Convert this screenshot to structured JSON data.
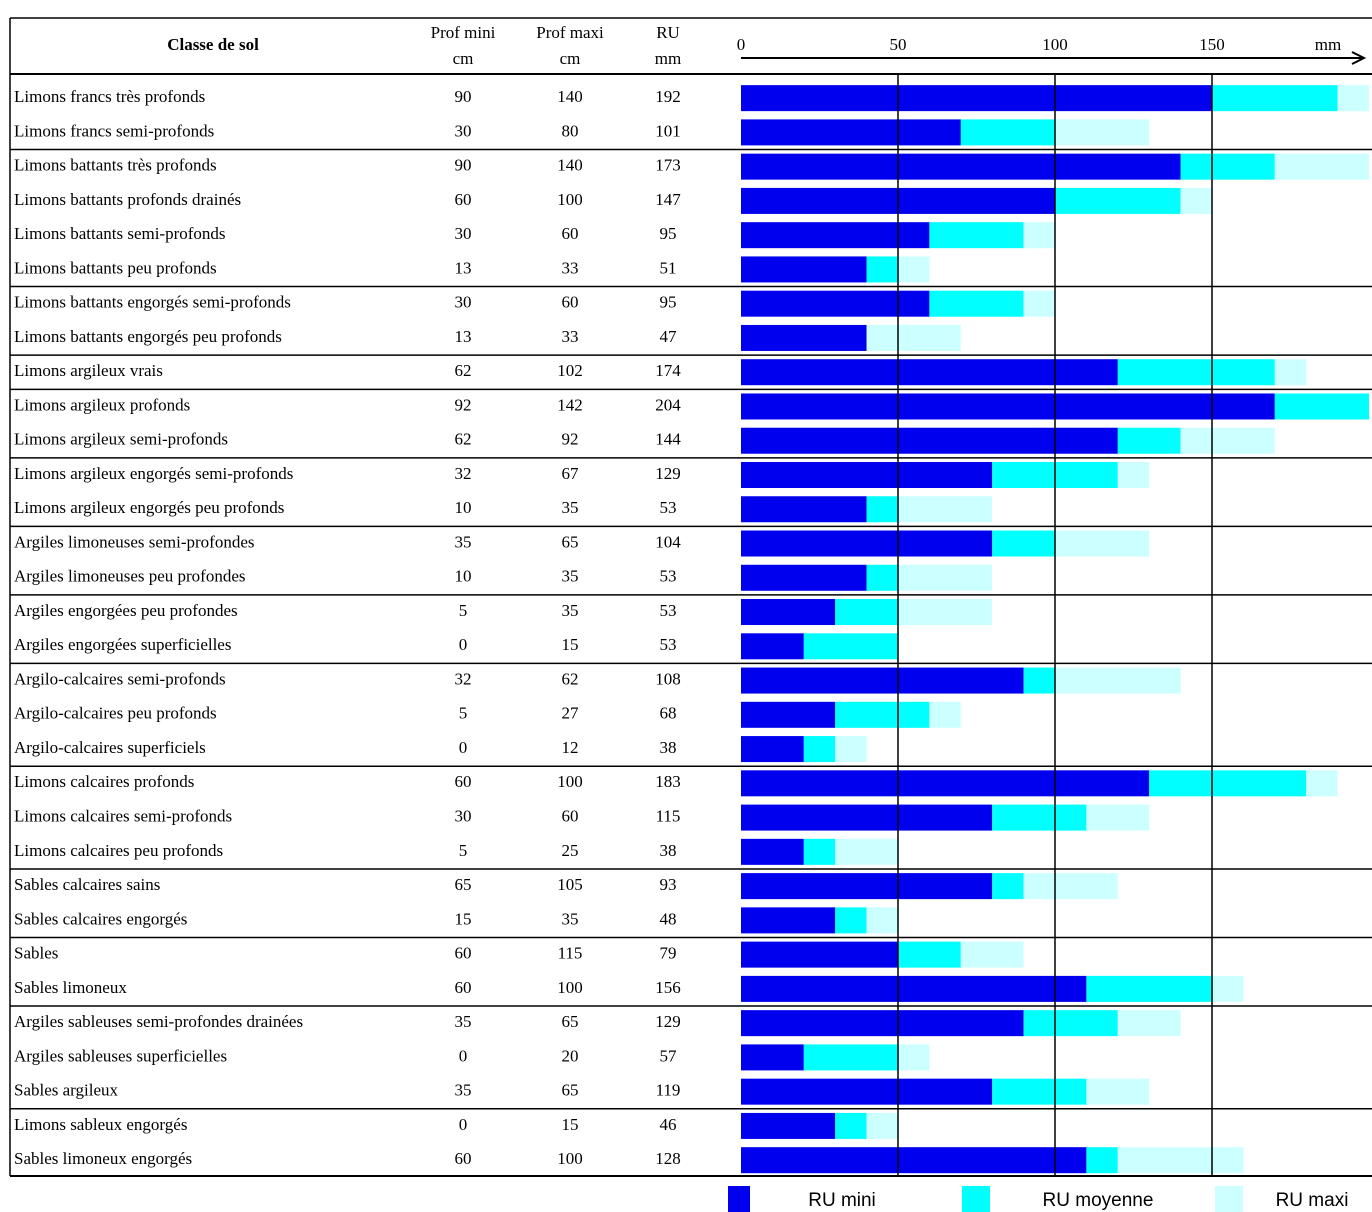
{
  "table": {
    "headers": [
      [
        "Classe de sol"
      ],
      [
        "Prof mini",
        "cm"
      ],
      [
        "Prof maxi",
        "cm"
      ],
      [
        "RU",
        "mm"
      ]
    ],
    "groups": [
      [
        [
          "Limons francs très profonds",
          90,
          140,
          192
        ],
        [
          "Limons francs semi-profonds",
          30,
          80,
          101
        ]
      ],
      [
        [
          "Limons battants très profonds",
          90,
          140,
          173
        ],
        [
          "Limons battants profonds drainés",
          60,
          100,
          147
        ],
        [
          "Limons battants semi-profonds",
          30,
          60,
          95
        ],
        [
          "Limons battants peu profonds",
          13,
          33,
          51
        ]
      ],
      [
        [
          "Limons battants engorgés semi-profonds",
          30,
          60,
          95
        ],
        [
          "Limons battants engorgés peu profonds",
          13,
          33,
          47
        ]
      ],
      [
        [
          "Limons argileux vrais",
          62,
          102,
          174
        ]
      ],
      [
        [
          "Limons argileux profonds",
          92,
          142,
          204
        ],
        [
          "Limons argileux semi-profonds",
          62,
          92,
          144
        ]
      ],
      [
        [
          "Limons argileux engorgés semi-profonds",
          32,
          67,
          129
        ],
        [
          "Limons argileux engorgés peu profonds",
          10,
          35,
          53
        ]
      ],
      [
        [
          "Argiles limoneuses semi-profondes",
          35,
          65,
          104
        ],
        [
          "Argiles limoneuses peu profondes",
          10,
          35,
          53
        ]
      ],
      [
        [
          "Argiles engorgées peu profondes",
          5,
          35,
          53
        ],
        [
          "Argiles engorgées superficielles",
          0,
          15,
          53
        ]
      ],
      [
        [
          "Argilo-calcaires semi-profonds",
          32,
          62,
          108
        ],
        [
          "Argilo-calcaires peu profonds",
          5,
          27,
          68
        ],
        [
          "Argilo-calcaires superficiels",
          0,
          12,
          38
        ]
      ],
      [
        [
          "Limons calcaires profonds",
          60,
          100,
          183
        ],
        [
          "Limons calcaires semi-profonds",
          30,
          60,
          115
        ],
        [
          "Limons calcaires peu profonds",
          5,
          25,
          38
        ]
      ],
      [
        [
          "Sables calcaires sains",
          65,
          105,
          93
        ],
        [
          "Sables calcaires engorgés",
          15,
          35,
          48
        ]
      ],
      [
        [
          "Sables",
          60,
          115,
          79
        ],
        [
          "Sables limoneux",
          60,
          100,
          156
        ]
      ],
      [
        [
          "Argiles sableuses semi-profondes drainées",
          35,
          65,
          129
        ],
        [
          "Argiles sableuses superficielles",
          0,
          20,
          57
        ],
        [
          "Sables argileux",
          35,
          65,
          119
        ]
      ],
      [
        [
          "Limons sableux engorgés",
          0,
          15,
          46
        ],
        [
          "Sables limoneux engorgés",
          60,
          100,
          128
        ]
      ]
    ]
  },
  "chart_data": {
    "type": "bar",
    "stacked": true,
    "xlabel": "mm",
    "xlim": [
      0,
      200
    ],
    "xticks": [
      0,
      50,
      100,
      150
    ],
    "grid": true,
    "series": [
      {
        "name": "RU mini",
        "color": "#0000ee",
        "values": [
          150,
          70,
          140,
          100,
          60,
          40,
          60,
          40,
          120,
          170,
          120,
          80,
          40,
          80,
          40,
          30,
          20,
          90,
          30,
          20,
          130,
          80,
          20,
          80,
          30,
          50,
          110,
          90,
          20,
          80,
          30,
          110
        ]
      },
      {
        "name": "RU moyenne",
        "color": "#00ffff",
        "values": [
          40,
          30,
          30,
          40,
          30,
          10,
          30,
          0,
          50,
          30,
          20,
          40,
          10,
          20,
          10,
          20,
          30,
          10,
          30,
          10,
          50,
          30,
          10,
          10,
          10,
          20,
          40,
          30,
          30,
          30,
          10,
          10
        ]
      },
      {
        "name": "RU maxi",
        "color": "#ccffff",
        "values": [
          10,
          30,
          30,
          10,
          10,
          10,
          10,
          30,
          10,
          0,
          30,
          10,
          30,
          30,
          30,
          30,
          0,
          40,
          10,
          10,
          10,
          20,
          20,
          30,
          10,
          20,
          10,
          20,
          10,
          20,
          10,
          40
        ]
      }
    ]
  }
}
